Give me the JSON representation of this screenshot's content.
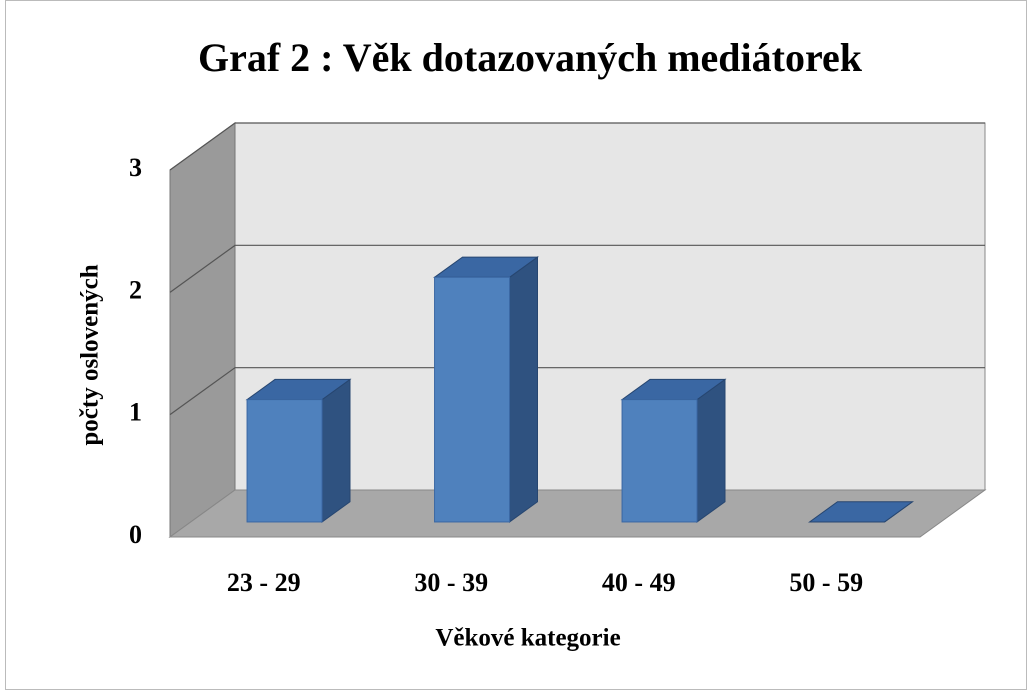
{
  "chart_data": {
    "type": "bar",
    "title": "Graf 2 : Věk dotazovaných mediátorek",
    "y_label": "počty oslovených",
    "x_label": "Věkové kategorie",
    "categories": [
      "23 - 29",
      "30 - 39",
      "40 - 49",
      "50 - 59"
    ],
    "values": [
      1,
      2,
      1,
      0
    ],
    "color": "#4f81bd",
    "ylim": [
      0,
      3
    ],
    "yticks": [
      0,
      1,
      2,
      3
    ],
    "grid": true
  }
}
